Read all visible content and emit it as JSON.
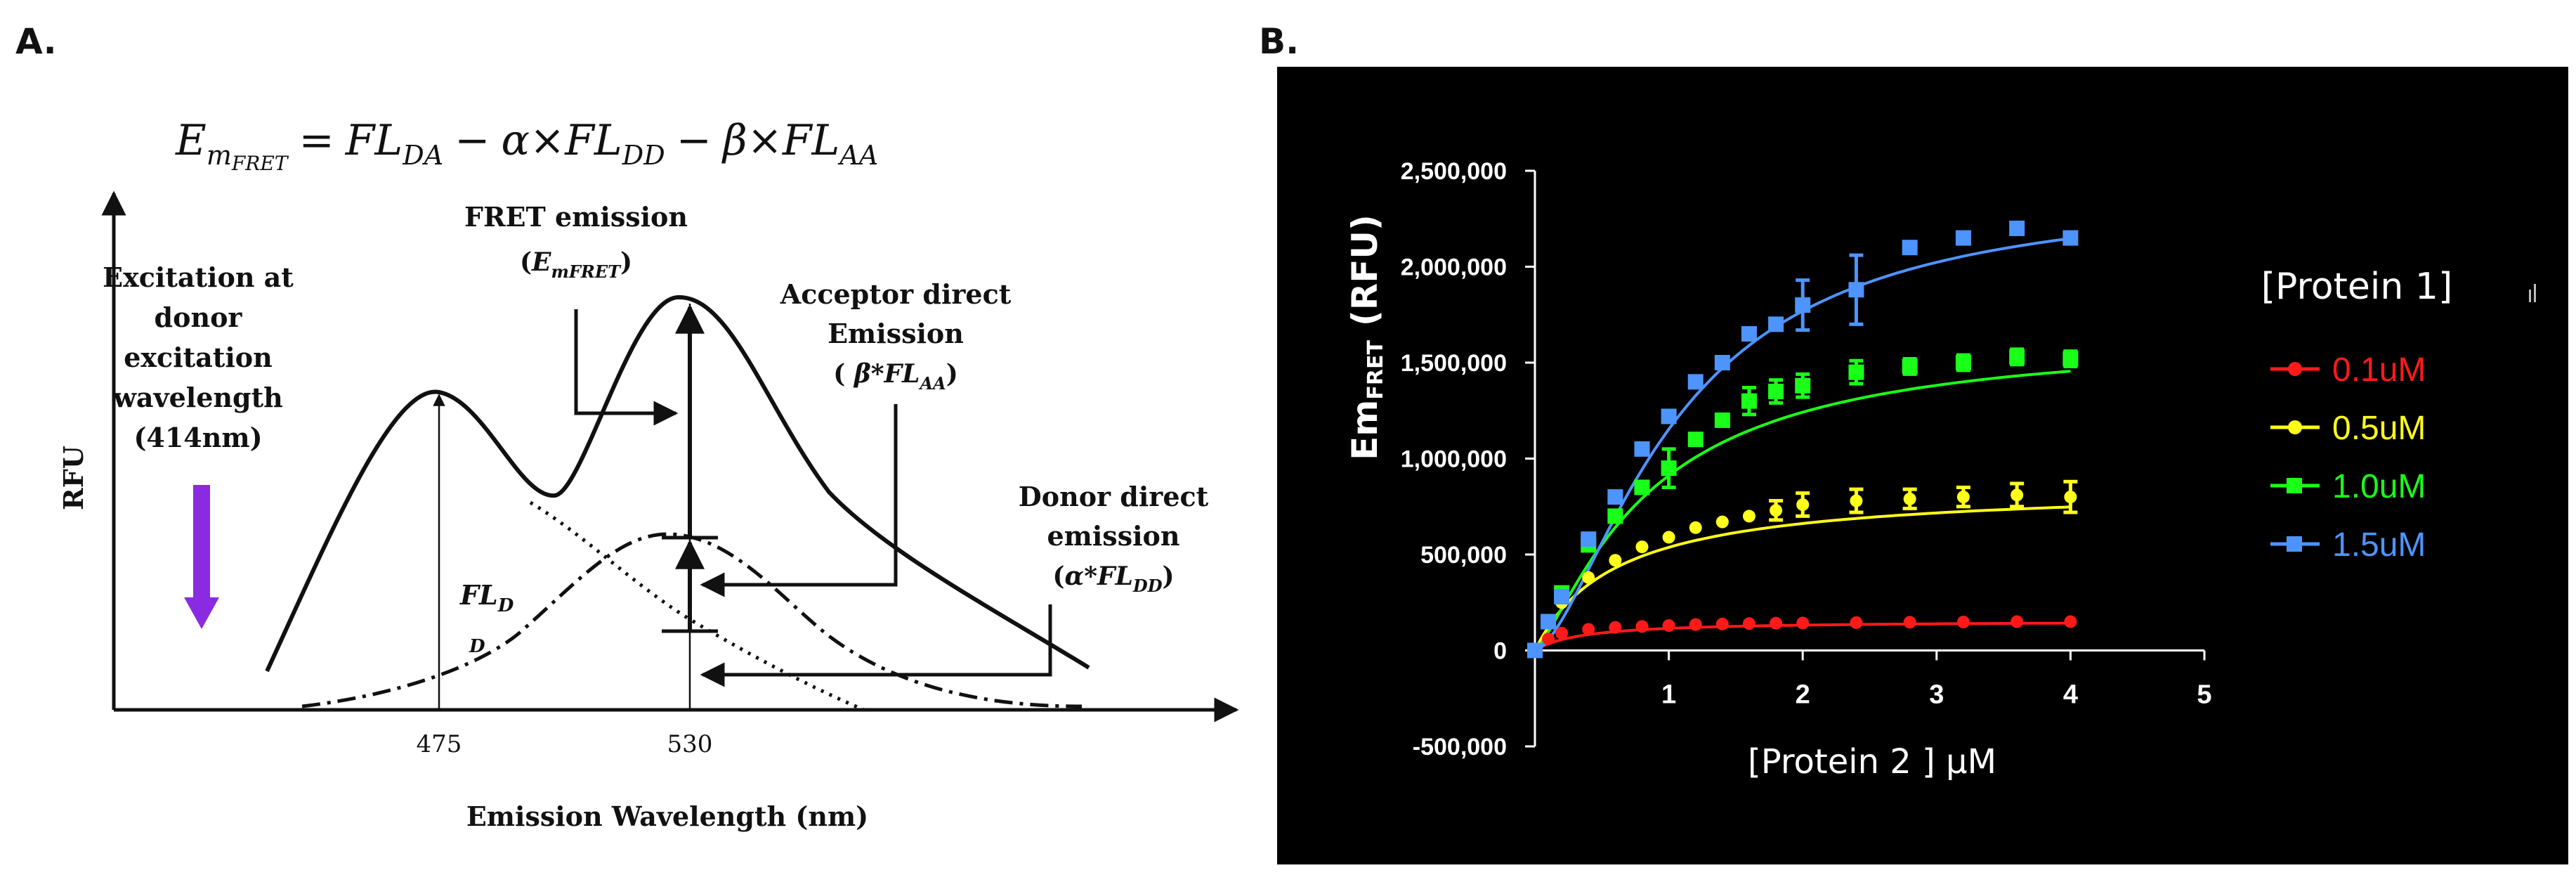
{
  "panel_a": {
    "label": "A.",
    "equation": {
      "lhs_main": "E",
      "lhs_sub1": "m",
      "lhs_sub2": "FRET",
      "eq": "=",
      "t1_main": "FL",
      "t1_sub": "DA",
      "minus1": "−",
      "alpha": "α×",
      "t2_main": "FL",
      "t2_sub": "DD",
      "minus2": "−",
      "beta": "β×",
      "t3_main": "FL",
      "t3_sub": "AA"
    },
    "ylabel": "RFU",
    "xlabel": "Emission Wavelength (nm)",
    "ticks": [
      "475",
      "530"
    ],
    "excitation": [
      "Excitation at",
      "donor",
      "excitation",
      "wavelength",
      "(414nm)"
    ],
    "fret_title": "FRET emission",
    "fret_sym": {
      "open": "(",
      "main": "E",
      "sub": "mFRET",
      "close": ")"
    },
    "acceptor": {
      "line1": "Acceptor direct",
      "line2": "Emission",
      "open": "( ",
      "main": "β*FL",
      "sub": "AA",
      "close": ")"
    },
    "donor": {
      "line1": "Donor direct",
      "line2": "emission",
      "open": "(",
      "main": "α*FL",
      "sub": "DD",
      "close": ")"
    },
    "fld": {
      "main": "FL",
      "sub": "D",
      "sub2": "D"
    },
    "colors": {
      "arrow": "#8a2be2"
    }
  },
  "panel_b": {
    "label": "B.",
    "legend_title": "[Protein 1]",
    "chart_data": {
      "type": "scatter",
      "title": "",
      "xlabel": "[Protein 2 ] μM",
      "ylabel_main": "Em",
      "ylabel_sub": "FRET",
      "ylabel_unit": "(RFU)",
      "xlim": [
        0,
        5
      ],
      "ylim": [
        -500000,
        2500000
      ],
      "x_ticks": [
        1,
        2,
        3,
        4,
        5
      ],
      "x_tick_labels": [
        "1",
        "2",
        "3",
        "4",
        "5"
      ],
      "y_ticks": [
        -500000,
        0,
        500000,
        1000000,
        1500000,
        2000000,
        2500000
      ],
      "y_tick_labels": [
        "-500,000",
        "0",
        "500,000",
        "1,000,000",
        "1,500,000",
        "2,000,000",
        "2,500,000"
      ],
      "x": [
        0,
        0.1,
        0.2,
        0.4,
        0.6,
        0.8,
        1.0,
        1.2,
        1.4,
        1.6,
        1.8,
        2.0,
        2.4,
        2.8,
        3.2,
        3.6,
        4.0
      ],
      "series": [
        {
          "name": "0.1uM",
          "color": "#ff1a1a",
          "marker": "circle",
          "values": [
            0,
            60000,
            90000,
            110000,
            120000,
            125000,
            130000,
            135000,
            138000,
            140000,
            142000,
            143000,
            145000,
            147000,
            148000,
            150000,
            150000
          ],
          "errors": [
            0,
            0,
            0,
            0,
            0,
            0,
            0,
            0,
            0,
            0,
            0,
            0,
            0,
            0,
            0,
            0,
            0
          ]
        },
        {
          "name": "0.5uM",
          "color": "#ffff1a",
          "marker": "circle",
          "values": [
            0,
            150000,
            250000,
            380000,
            470000,
            540000,
            590000,
            640000,
            670000,
            700000,
            730000,
            760000,
            780000,
            790000,
            800000,
            810000,
            800000
          ],
          "errors": [
            0,
            0,
            0,
            0,
            0,
            0,
            0,
            0,
            0,
            0,
            50000,
            60000,
            60000,
            50000,
            50000,
            60000,
            80000
          ]
        },
        {
          "name": "1.0uM",
          "color": "#1aff1a",
          "marker": "square",
          "values": [
            0,
            150000,
            300000,
            550000,
            700000,
            850000,
            950000,
            1100000,
            1200000,
            1300000,
            1350000,
            1380000,
            1450000,
            1480000,
            1500000,
            1530000,
            1520000
          ],
          "errors": [
            0,
            0,
            0,
            0,
            0,
            0,
            100000,
            0,
            0,
            70000,
            60000,
            60000,
            60000,
            40000,
            40000,
            40000,
            40000
          ]
        },
        {
          "name": "1.5uM",
          "color": "#4d94ff",
          "marker": "square",
          "values": [
            0,
            150000,
            280000,
            580000,
            800000,
            1050000,
            1220000,
            1400000,
            1500000,
            1650000,
            1700000,
            1800000,
            1880000,
            2100000,
            2150000,
            2200000,
            2150000
          ],
          "errors": [
            0,
            0,
            0,
            0,
            0,
            0,
            0,
            0,
            0,
            0,
            0,
            130000,
            180000,
            0,
            0,
            0,
            0
          ]
        }
      ],
      "fits": [
        {
          "name": "0.1uM",
          "color": "#ff1a1a",
          "Bmax": 155000,
          "K": 0.35,
          "h": 1
        },
        {
          "name": "0.5uM",
          "color": "#ffff1a",
          "Bmax": 860000,
          "K": 0.6,
          "h": 1
        },
        {
          "name": "1.0uM",
          "color": "#1aff1a",
          "Bmax": 1650000,
          "K": 0.85,
          "h": 1.3
        },
        {
          "name": "1.5uM",
          "color": "#4d94ff",
          "Bmax": 2400000,
          "K": 1.05,
          "h": 1.6
        }
      ]
    }
  }
}
